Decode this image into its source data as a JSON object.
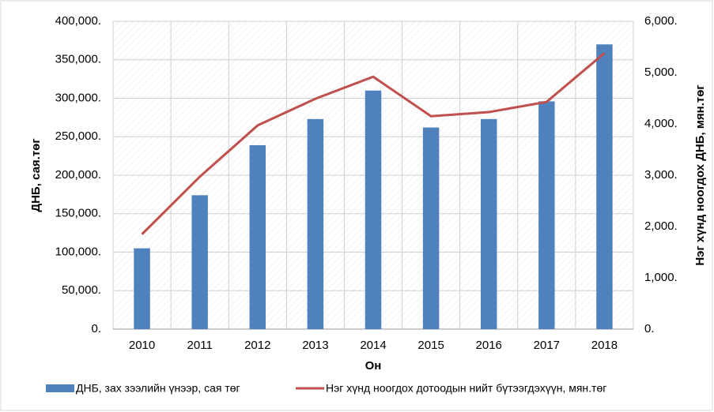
{
  "chart_data": {
    "type": "bar_line",
    "categories": [
      "2010",
      "2011",
      "2012",
      "2013",
      "2014",
      "2015",
      "2016",
      "2017",
      "2018"
    ],
    "series": [
      {
        "name": "ДНБ, зах зээлийн үнээр, сая төг",
        "color": "#4f81bd",
        "type": "bar",
        "axis": "y",
        "values": [
          105000,
          174000,
          239000,
          273000,
          310000,
          262000,
          273000,
          296000,
          370000
        ]
      },
      {
        "name": "Нэг хүнд ноогдох дотоодын нийт бүтээгдэхүүн, мян.төг",
        "color": "#c0504d",
        "type": "line",
        "axis": "y2",
        "values": [
          1850,
          2970,
          3970,
          4490,
          4920,
          4150,
          4230,
          4430,
          5380
        ]
      }
    ],
    "xlabel": "Он",
    "ylabel": "ДНБ, сая.төг",
    "y2label": "Нэг хүнд ноогдох ДНБ, мян.төг",
    "ylim": [
      0,
      400000
    ],
    "yticks": [
      {
        "value": 0,
        "label": "0."
      },
      {
        "value": 50000,
        "label": "50,000."
      },
      {
        "value": 100000,
        "label": "100,000."
      },
      {
        "value": 150000,
        "label": "150,000."
      },
      {
        "value": 200000,
        "label": "200,000."
      },
      {
        "value": 250000,
        "label": "250,000."
      },
      {
        "value": 300000,
        "label": "300,000."
      },
      {
        "value": 350000,
        "label": "350,000."
      },
      {
        "value": 400000,
        "label": "400,000."
      }
    ],
    "y2lim": [
      0,
      6000
    ],
    "y2ticks": [
      {
        "value": 0,
        "label": "0."
      },
      {
        "value": 1000,
        "label": "1,000."
      },
      {
        "value": 2000,
        "label": "2,000."
      },
      {
        "value": 3000,
        "label": "3,000."
      },
      {
        "value": 4000,
        "label": "4,000."
      },
      {
        "value": 5000,
        "label": "5,000."
      },
      {
        "value": 6000,
        "label": "6,000."
      }
    ],
    "grid": true,
    "legend": "bottom"
  }
}
